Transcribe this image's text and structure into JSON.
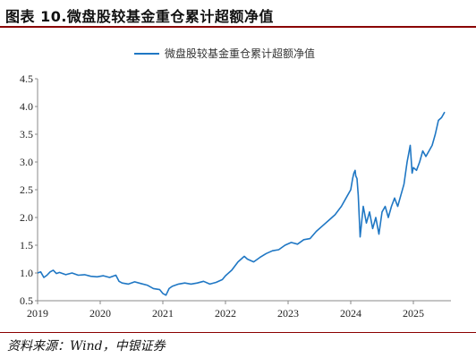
{
  "figure": {
    "title": "图表 10.微盘股较基金重仓累计超额净值",
    "source": "资料来源：Wind，中银证券"
  },
  "colors": {
    "line": "#1f77c4",
    "accent_rule": "#8a0000"
  },
  "chart_data": {
    "type": "line",
    "title": "",
    "xlabel": "",
    "ylabel": "",
    "xlim": [
      2019.0,
      2025.6
    ],
    "ylim": [
      0.5,
      4.5
    ],
    "x_ticks": [
      "2019",
      "2020",
      "2021",
      "2022",
      "2023",
      "2024",
      "2025"
    ],
    "y_ticks": [
      "0.5",
      "1.0",
      "1.5",
      "2.0",
      "2.5",
      "3.0",
      "3.5",
      "4.0",
      "4.5"
    ],
    "grid": false,
    "legend_position": "top-center",
    "series": [
      {
        "name": "微盘股较基金重仓累计超额净值",
        "x": [
          2019.0,
          2019.05,
          2019.1,
          2019.15,
          2019.2,
          2019.25,
          2019.3,
          2019.35,
          2019.45,
          2019.55,
          2019.65,
          2019.75,
          2019.85,
          2019.95,
          2020.05,
          2020.15,
          2020.25,
          2020.3,
          2020.35,
          2020.45,
          2020.55,
          2020.65,
          2020.75,
          2020.85,
          2020.95,
          2021.0,
          2021.05,
          2021.1,
          2021.15,
          2021.25,
          2021.35,
          2021.45,
          2021.55,
          2021.65,
          2021.75,
          2021.85,
          2021.95,
          2022.0,
          2022.1,
          2022.2,
          2022.25,
          2022.3,
          2022.35,
          2022.45,
          2022.55,
          2022.65,
          2022.75,
          2022.85,
          2022.95,
          2023.05,
          2023.15,
          2023.25,
          2023.35,
          2023.45,
          2023.55,
          2023.65,
          2023.75,
          2023.85,
          2023.95,
          2024.0,
          2024.03,
          2024.05,
          2024.07,
          2024.08,
          2024.1,
          2024.12,
          2024.15,
          2024.2,
          2024.25,
          2024.3,
          2024.35,
          2024.4,
          2024.45,
          2024.5,
          2024.55,
          2024.6,
          2024.65,
          2024.7,
          2024.75,
          2024.8,
          2024.85,
          2024.9,
          2024.95,
          2024.98,
          2025.0,
          2025.05,
          2025.1,
          2025.15,
          2025.2,
          2025.25,
          2025.3,
          2025.35,
          2025.4,
          2025.45,
          2025.5
        ],
        "values": [
          1.0,
          1.02,
          0.92,
          0.96,
          1.02,
          1.05,
          0.99,
          1.01,
          0.97,
          1.0,
          0.96,
          0.97,
          0.94,
          0.93,
          0.95,
          0.92,
          0.96,
          0.85,
          0.82,
          0.8,
          0.84,
          0.81,
          0.78,
          0.72,
          0.7,
          0.63,
          0.6,
          0.72,
          0.76,
          0.8,
          0.82,
          0.8,
          0.82,
          0.85,
          0.8,
          0.83,
          0.88,
          0.95,
          1.05,
          1.2,
          1.25,
          1.3,
          1.25,
          1.2,
          1.28,
          1.35,
          1.4,
          1.42,
          1.5,
          1.55,
          1.52,
          1.6,
          1.62,
          1.75,
          1.85,
          1.95,
          2.05,
          2.2,
          2.4,
          2.5,
          2.7,
          2.8,
          2.85,
          2.75,
          2.7,
          2.4,
          1.65,
          2.2,
          1.9,
          2.1,
          1.8,
          2.0,
          1.7,
          2.1,
          2.2,
          2.0,
          2.2,
          2.35,
          2.2,
          2.4,
          2.6,
          3.0,
          3.3,
          2.8,
          2.9,
          2.85,
          3.0,
          3.2,
          3.1,
          3.2,
          3.3,
          3.5,
          3.75,
          3.8,
          3.9
        ]
      }
    ]
  }
}
